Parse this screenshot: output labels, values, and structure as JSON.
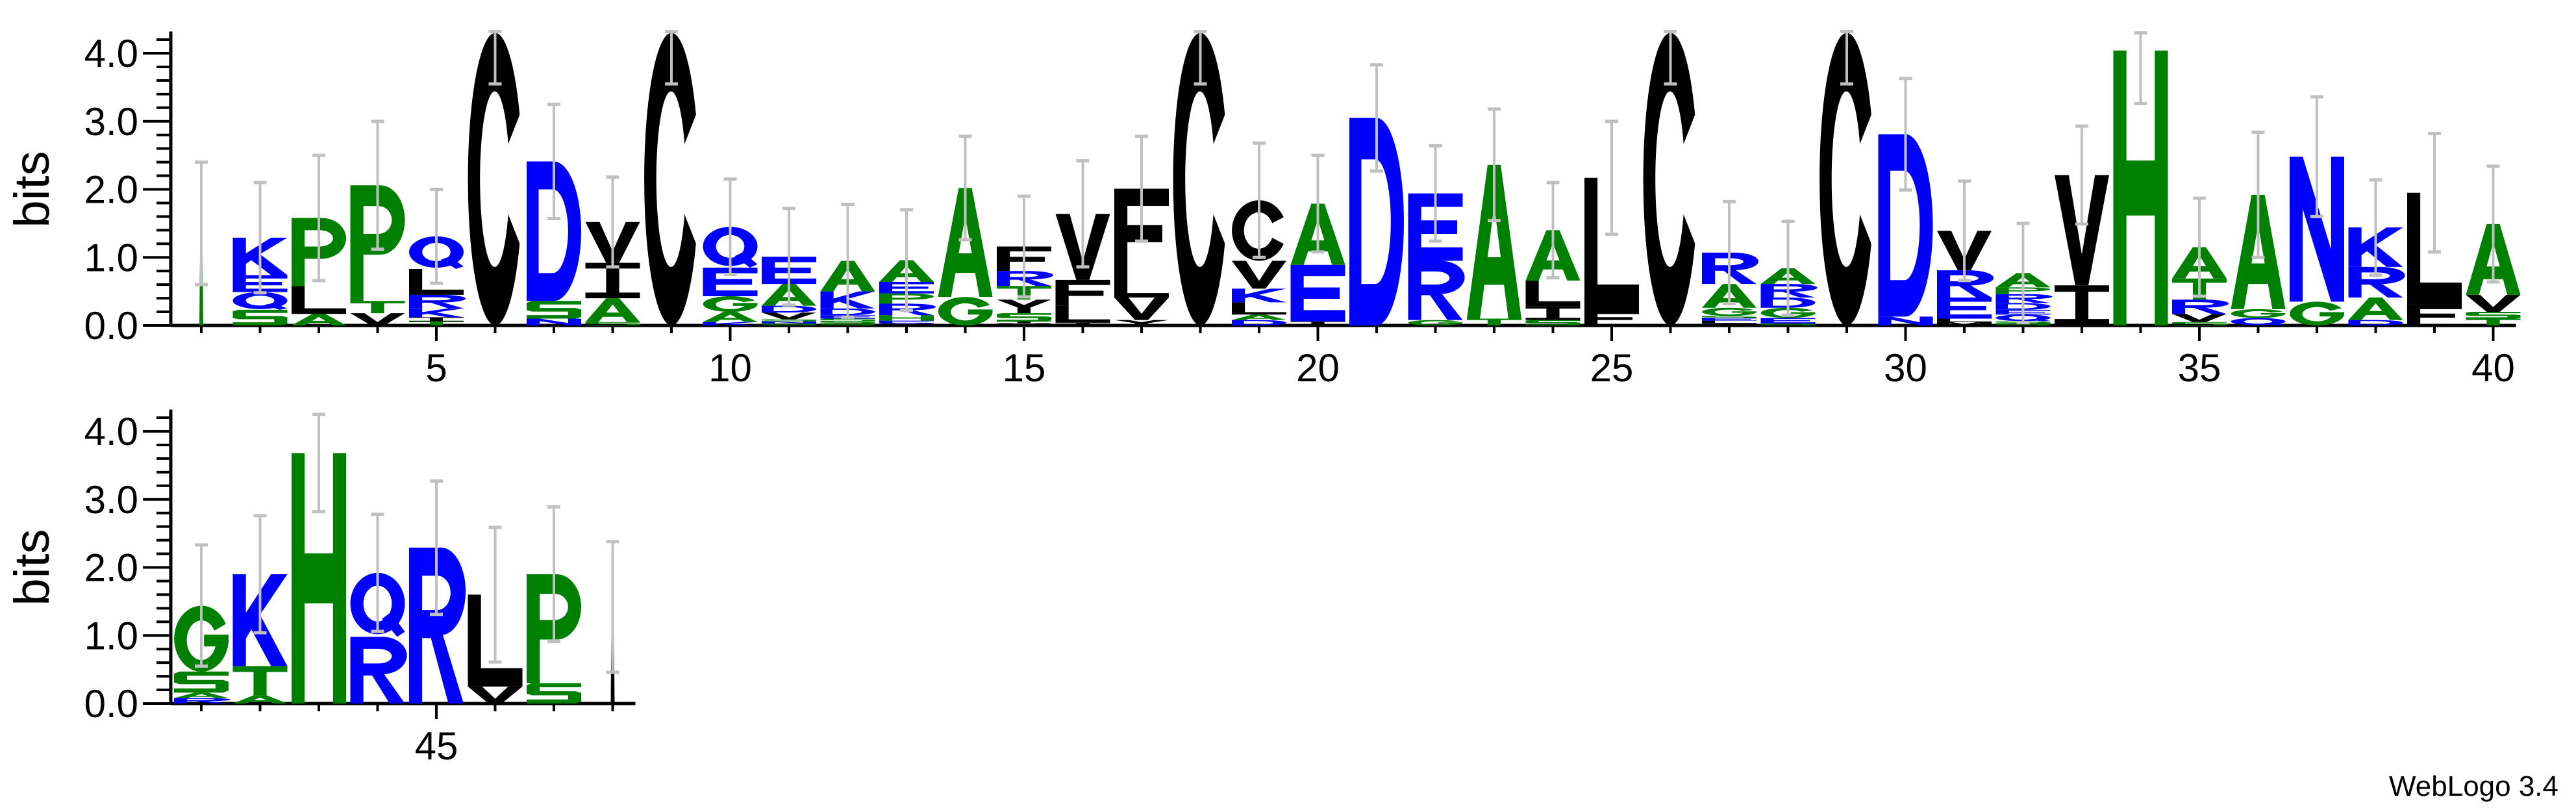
{
  "chart_data": {
    "type": "sequence-logo",
    "ylabel": "bits",
    "ylim": [
      0,
      4.32
    ],
    "y_ticks": [
      "0.0",
      "1.0",
      "2.0",
      "3.0",
      "4.0"
    ],
    "y_tick_values": [
      0,
      1,
      2,
      3,
      4
    ],
    "credit": "WebLogo 3.4",
    "colors": {
      "green": "#008000",
      "blue": "#0000ff",
      "black": "#000000",
      "errorbar": "#c0c0c0"
    },
    "color_scheme": {
      "G": "#008000",
      "S": "#008000",
      "T": "#008000",
      "A": "#008000",
      "P": "#008000",
      "H": "#008000",
      "K": "#0000ff",
      "R": "#0000ff",
      "D": "#0000ff",
      "E": "#0000ff",
      "N": "#0000ff",
      "Q": "#0000ff",
      "C": "#000000",
      "V": "#000000",
      "L": "#000000",
      "I": "#000000",
      "F": "#000000",
      "Y": "#000000",
      "M": "#000000",
      "W": "#000000"
    },
    "rows": [
      {
        "first": 1,
        "last": 40,
        "x_tick_labels": [
          {
            "pos": 5,
            "label": "5"
          },
          {
            "pos": 10,
            "label": "10"
          },
          {
            "pos": 15,
            "label": "15"
          },
          {
            "pos": 20,
            "label": "20"
          },
          {
            "pos": 25,
            "label": "25"
          },
          {
            "pos": 30,
            "label": "30"
          },
          {
            "pos": 35,
            "label": "35"
          },
          {
            "pos": 40,
            "label": "40"
          }
        ]
      },
      {
        "first": 41,
        "last": 48,
        "x_tick_labels": [
          {
            "pos": 45,
            "label": "45"
          }
        ]
      }
    ],
    "positions": [
      {
        "pos": 1,
        "stack": [
          [
            "|",
            1.5,
            "#008000"
          ]
        ],
        "err_hi": 2.4
      },
      {
        "pos": 2,
        "stack": [
          [
            "S",
            0.23
          ],
          [
            "Q",
            0.26
          ],
          [
            "E",
            0.25
          ],
          [
            "K",
            0.55
          ]
        ],
        "err_hi": 2.1
      },
      {
        "pos": 3,
        "stack": [
          [
            "A",
            0.17
          ],
          [
            "L",
            0.41
          ],
          [
            "P",
            1.0
          ]
        ],
        "err_hi": 2.5
      },
      {
        "pos": 4,
        "stack": [
          [
            "V",
            0.18
          ],
          [
            "T",
            0.18
          ],
          [
            "P",
            1.7
          ]
        ],
        "err_hi": 3.0
      },
      {
        "pos": 5,
        "stack": [
          [
            "T",
            0.06
          ],
          [
            "I",
            0.06
          ],
          [
            "K",
            0.13
          ],
          [
            "R",
            0.2
          ],
          [
            "L",
            0.38
          ],
          [
            "Q",
            0.48
          ]
        ],
        "err_hi": 2.0
      },
      {
        "pos": 6,
        "stack": [
          [
            "C",
            4.3
          ]
        ],
        "err_hi": 4.32,
        "err_lo": 3.55
      },
      {
        "pos": 7,
        "stack": [
          [
            "N",
            0.1
          ],
          [
            "S",
            0.26
          ],
          [
            "D",
            2.05
          ]
        ],
        "err_hi": 3.25
      },
      {
        "pos": 8,
        "stack": [
          [
            "S",
            0.05
          ],
          [
            "A",
            0.35
          ],
          [
            "I",
            0.52
          ],
          [
            "V",
            0.6
          ]
        ],
        "err_hi": 2.18
      },
      {
        "pos": 9,
        "stack": [
          [
            "C",
            4.3
          ]
        ],
        "err_hi": 4.32,
        "err_lo": 3.55
      },
      {
        "pos": 10,
        "stack": [
          [
            "K",
            0.05
          ],
          [
            "A",
            0.15
          ],
          [
            "G",
            0.23
          ],
          [
            "E",
            0.42
          ],
          [
            "Q",
            0.6
          ]
        ],
        "err_hi": 2.15
      },
      {
        "pos": 11,
        "stack": [
          [
            "S",
            0.03
          ],
          [
            "N",
            0.03
          ],
          [
            "S",
            0.03
          ],
          [
            "V",
            0.1
          ],
          [
            "D",
            0.1
          ],
          [
            "A",
            0.32
          ],
          [
            "E",
            0.4
          ]
        ],
        "err_hi": 1.72
      },
      {
        "pos": 12,
        "stack": [
          [
            "S",
            0.03
          ],
          [
            "S",
            0.03
          ],
          [
            "S",
            0.04
          ],
          [
            "E",
            0.05
          ],
          [
            "D",
            0.1
          ],
          [
            "K",
            0.25
          ],
          [
            "A",
            0.45
          ]
        ],
        "err_hi": 1.78
      },
      {
        "pos": 13,
        "stack": [
          [
            "V",
            0.03
          ],
          [
            "E",
            0.04
          ],
          [
            "H",
            0.08
          ],
          [
            "R",
            0.17
          ],
          [
            "P",
            0.15
          ],
          [
            "E",
            0.17
          ],
          [
            "A",
            0.32
          ]
        ],
        "err_hi": 1.7
      },
      {
        "pos": 14,
        "stack": [
          [
            "G",
            0.42
          ],
          [
            "A",
            1.6
          ]
        ],
        "err_hi": 2.78
      },
      {
        "pos": 15,
        "stack": [
          [
            "V",
            0.03
          ],
          [
            "I",
            0.03
          ],
          [
            "S",
            0.12
          ],
          [
            "Y",
            0.2
          ],
          [
            "T",
            0.2
          ],
          [
            "R",
            0.22
          ],
          [
            "F",
            0.36
          ]
        ],
        "err_hi": 1.9
      },
      {
        "pos": 16,
        "stack": [
          [
            "I",
            0.04
          ],
          [
            "L",
            0.25
          ],
          [
            "F",
            0.38
          ],
          [
            "V",
            0.97
          ]
        ],
        "err_hi": 2.42
      },
      {
        "pos": 17,
        "stack": [
          [
            "Y",
            0.08
          ],
          [
            "V",
            0.33
          ],
          [
            "L",
            0.33
          ],
          [
            "F",
            1.27
          ]
        ],
        "err_hi": 2.78
      },
      {
        "pos": 18,
        "stack": [
          [
            "C",
            4.3
          ]
        ],
        "err_hi": 4.32,
        "err_lo": 3.55
      },
      {
        "pos": 19,
        "stack": [
          [
            "D",
            0.08
          ],
          [
            "A",
            0.08
          ],
          [
            "L",
            0.18
          ],
          [
            "K",
            0.2
          ],
          [
            "V",
            0.41
          ],
          [
            "C",
            0.89
          ]
        ],
        "err_hi": 2.68
      },
      {
        "pos": 20,
        "stack": [
          [
            "I",
            0.06
          ],
          [
            "E",
            0.83
          ],
          [
            "A",
            0.9
          ]
        ],
        "err_hi": 2.5
      },
      {
        "pos": 21,
        "stack": [
          [
            "D",
            3.05
          ]
        ],
        "err_hi": 3.83
      },
      {
        "pos": 22,
        "stack": [
          [
            "G",
            0.08
          ],
          [
            "R",
            0.87
          ],
          [
            "E",
            0.99
          ]
        ],
        "err_hi": 2.64
      },
      {
        "pos": 23,
        "stack": [
          [
            "T",
            0.1
          ],
          [
            "A",
            2.26
          ]
        ],
        "err_hi": 3.18
      },
      {
        "pos": 24,
        "stack": [
          [
            "S",
            0.08
          ],
          [
            "I",
            0.2
          ],
          [
            "L",
            0.38
          ],
          [
            "A",
            0.74
          ]
        ],
        "err_hi": 2.1
      },
      {
        "pos": 25,
        "stack": [
          [
            "F",
            0.21
          ],
          [
            "L",
            1.96
          ]
        ],
        "err_hi": 3.0
      },
      {
        "pos": 26,
        "stack": [
          [
            "C",
            4.3
          ]
        ],
        "err_hi": 4.32,
        "err_lo": 3.55
      },
      {
        "pos": 27,
        "stack": [
          [
            "I",
            0.03
          ],
          [
            "L",
            0.04
          ],
          [
            "E",
            0.04
          ],
          [
            "S",
            0.03
          ],
          [
            "G",
            0.12
          ],
          [
            "A",
            0.35
          ],
          [
            "R",
            0.46
          ]
        ],
        "err_hi": 1.82
      },
      {
        "pos": 28,
        "stack": [
          [
            "S",
            0.03
          ],
          [
            "E",
            0.08
          ],
          [
            "G",
            0.15
          ],
          [
            "D",
            0.15
          ],
          [
            "R",
            0.2
          ],
          [
            "A",
            0.23
          ]
        ],
        "err_hi": 1.53
      },
      {
        "pos": 29,
        "stack": [
          [
            "C",
            4.3
          ]
        ],
        "err_hi": 4.32,
        "err_lo": 3.55
      },
      {
        "pos": 30,
        "stack": [
          [
            "N",
            0.13
          ],
          [
            "D",
            2.68
          ]
        ],
        "err_hi": 3.63
      },
      {
        "pos": 31,
        "stack": [
          [
            "M",
            0.05
          ],
          [
            "L",
            0.05
          ],
          [
            "E",
            0.31
          ],
          [
            "R",
            0.4
          ],
          [
            "V",
            0.58
          ]
        ],
        "err_hi": 2.12
      },
      {
        "pos": 32,
        "stack": [
          [
            "S",
            0.03
          ],
          [
            "S",
            0.03
          ],
          [
            "Q",
            0.1
          ],
          [
            "E",
            0.07
          ],
          [
            "D",
            0.1
          ],
          [
            "R",
            0.13
          ],
          [
            "P",
            0.1
          ],
          [
            "A",
            0.21
          ]
        ],
        "err_hi": 1.5
      },
      {
        "pos": 33,
        "stack": [
          [
            "I",
            0.59
          ],
          [
            "V",
            1.62
          ]
        ],
        "err_hi": 2.93
      },
      {
        "pos": 34,
        "stack": [
          [
            "H",
            4.04
          ]
        ],
        "err_hi": 4.3,
        "err_lo": 3.26
      },
      {
        "pos": 35,
        "stack": [
          [
            "S",
            0.05
          ],
          [
            "V",
            0.12
          ],
          [
            "R",
            0.21
          ],
          [
            "T",
            0.31
          ],
          [
            "A",
            0.46
          ]
        ],
        "err_hi": 1.87
      },
      {
        "pos": 36,
        "stack": [
          [
            "Q",
            0.11
          ],
          [
            "G",
            0.13
          ],
          [
            "A",
            1.68
          ]
        ],
        "err_hi": 2.84
      },
      {
        "pos": 37,
        "stack": [
          [
            "G",
            0.35
          ],
          [
            "N",
            2.13
          ]
        ],
        "err_hi": 3.36
      },
      {
        "pos": 38,
        "stack": [
          [
            "D",
            0.08
          ],
          [
            "A",
            0.33
          ],
          [
            "R",
            0.45
          ],
          [
            "K",
            0.58
          ]
        ],
        "err_hi": 2.14
      },
      {
        "pos": 39,
        "stack": [
          [
            "F",
            0.3
          ],
          [
            "L",
            1.65
          ]
        ],
        "err_hi": 2.82
      },
      {
        "pos": 40,
        "stack": [
          [
            "T",
            0.1
          ],
          [
            "S",
            0.1
          ],
          [
            "V",
            0.25
          ],
          [
            "A",
            1.04
          ]
        ],
        "err_hi": 2.34
      },
      {
        "pos": 41,
        "stack": [
          [
            "R",
            0.08
          ],
          [
            "A",
            0.08
          ],
          [
            "S",
            0.31
          ],
          [
            "G",
            0.97
          ]
        ],
        "err_hi": 2.33
      },
      {
        "pos": 42,
        "stack": [
          [
            "A",
            0.12
          ],
          [
            "T",
            0.43
          ],
          [
            "K",
            1.35
          ]
        ],
        "err_hi": 2.76
      },
      {
        "pos": 43,
        "stack": [
          [
            "H",
            3.68
          ]
        ],
        "err_hi": 4.25,
        "err_lo": 2.82
      },
      {
        "pos": 44,
        "stack": [
          [
            "R",
            0.98
          ],
          [
            "Q",
            0.94
          ]
        ],
        "err_hi": 2.78
      },
      {
        "pos": 45,
        "stack": [
          [
            "R",
            2.29
          ]
        ],
        "err_hi": 3.27
      },
      {
        "pos": 46,
        "stack": [
          [
            "V",
            0.25
          ],
          [
            "L",
            1.35
          ]
        ],
        "err_hi": 2.59
      },
      {
        "pos": 47,
        "stack": [
          [
            "S",
            0.3
          ],
          [
            "P",
            1.6
          ]
        ],
        "err_hi": 2.89
      },
      {
        "pos": 48,
        "stack": [
          [
            "|",
            1.42,
            "#000000"
          ]
        ],
        "err_hi": 2.38
      }
    ]
  }
}
